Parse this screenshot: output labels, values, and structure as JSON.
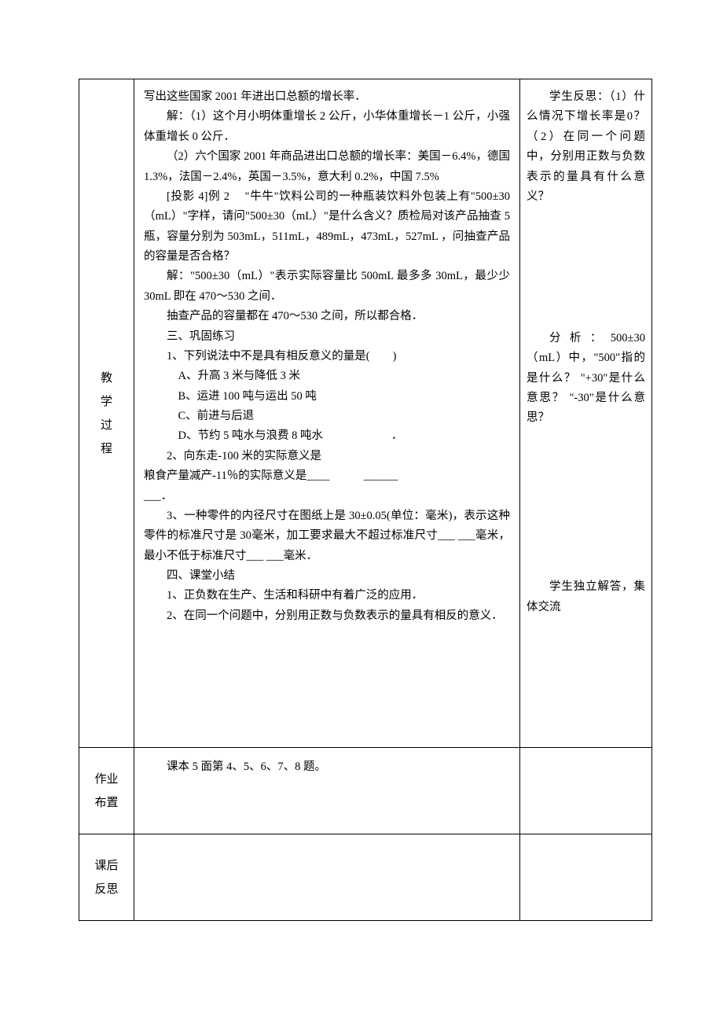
{
  "labels": {
    "teaching_process": [
      "教",
      "学",
      "过",
      "程"
    ],
    "homework": [
      "作业",
      "布置"
    ],
    "reflection": [
      "课后",
      "反思"
    ]
  },
  "content": {
    "p1": "写出这些国家 2001 年进出口总额的增长率．",
    "p2": "解：（1）这个月小明体重增长 2 公斤，小华体重增长－1 公斤，小强体重增长 0 公斤．",
    "p3": "（2）六个国家 2001 年商品进出口总额的增长率：美国－6.4%，德国 1.3%，法国－2.4%，英国－3.5%，意大利 0.2%，中国 7.5%",
    "p4": "[投影 4]例 2 　\"牛牛\"饮料公司的一种瓶装饮料外包装上有\"500±30（mL）\"字样，请问\"500±30（mL）\"是什么含义？质检局对该产品抽查 5 瓶，容量分别为 503mL，511mL，489mL，473mL，527mL ，问抽查产品的容量是否合格？",
    "p5": "解：\"500±30（mL）\"表示实际容量比 500mL 最多多 30mL，最少少 30mL 即在 470～530 之间．",
    "p6": "抽查产品的容量都在 470～530 之间，所以都合格．",
    "s3_title": "三、巩固练习",
    "q1": "1、下列说法中不是具有相反意义的量是(　　)",
    "q1a": "A、升高 3 米与降低 3 米",
    "q1b": "B、运进 100 吨与运出 50 吨",
    "q1c": "C、前进与后退",
    "q1d": "D、节约 5 吨水与浪费 8 吨水　　　　　　．",
    "q2": "2、向东走-100 米的实际意义是",
    "q2b": "粮食产量减产-11％的实际意义是____　　　______",
    "q2c": "___．",
    "q3": "3、一种零件的内径尺寸在图纸上是 30±0.05(单位：毫米)，表示这种零件的标准尺寸是 30毫米，加工要求最大不超过标准尺寸___  ___毫米，最小不低于标准尺寸___  ___毫米．",
    "s4_title": "四、课堂小结",
    "s4_1": "1、正负数在生产、生活和科研中有着广泛的应用．",
    "s4_2": "2、在同一个问题中，分别用正数与负数表示的量具有相反的意义．"
  },
  "notes": {
    "n1": "学生反思：（1）什么情况下增长率是0？ （2）在同一个问题中，分别用正数与负数表示的量具有什么意义？",
    "n2": "分析：500±30（mL）中，\"500\"指的是什么？ \"+30\"是什么意思？ \"-30\"是什么意思？",
    "n3": "学生独立解答，集体交流"
  },
  "homework": {
    "text": "课本 5 面第 4、5、6、7、8 题。"
  }
}
